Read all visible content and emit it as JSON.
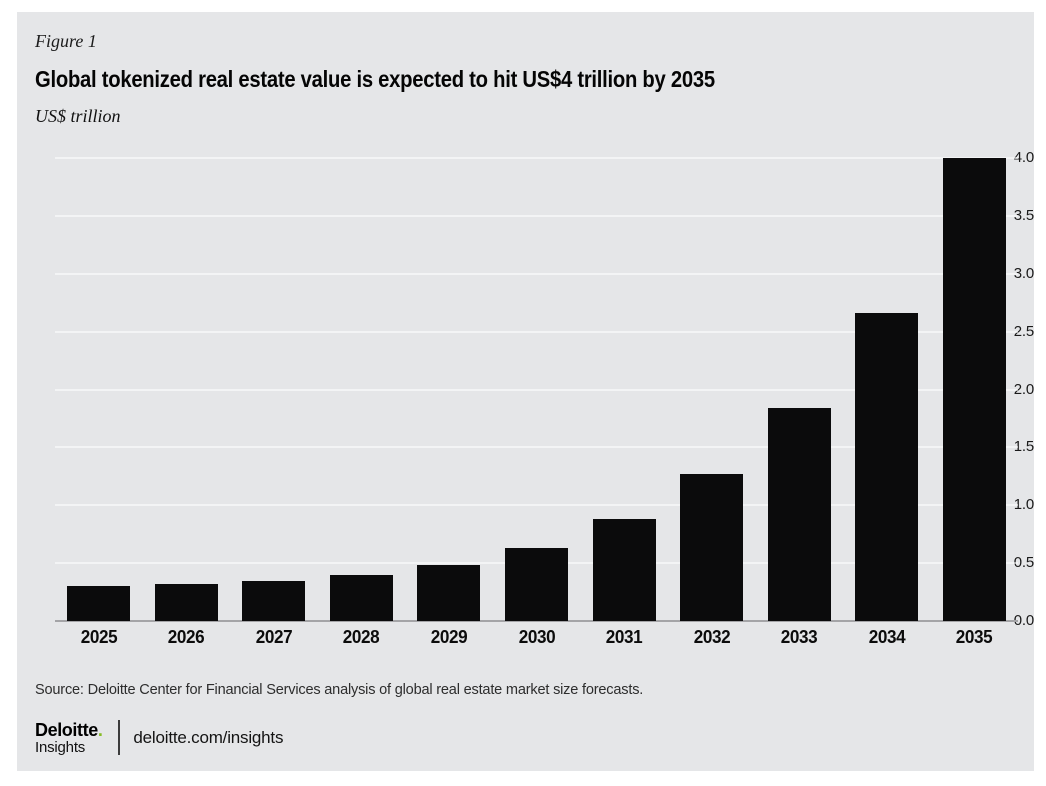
{
  "figure_label": "Figure 1",
  "title": "Global tokenized real estate value is expected to hit US$4 trillion by 2035",
  "unit_label": "US$ trillion",
  "source": "Source: Deloitte Center for Financial Services analysis of global real estate market size forecasts.",
  "footer": {
    "brand": "Deloitte",
    "brand_dot": ".",
    "brand_sub": "Insights",
    "link": "deloitte.com/insights"
  },
  "colors": {
    "panel_bg": "#e5e6e8",
    "bar": "#0b0b0c",
    "gridline": "rgba(255,255,255,0.55)",
    "axis_line": "#a4a4a7",
    "accent_green": "#86bc25",
    "text": "#0c0c0c"
  },
  "chart_data": {
    "type": "bar",
    "title": "Global tokenized real estate value is expected to hit US$4 trillion by 2035",
    "xlabel": "",
    "ylabel": "US$ trillion",
    "categories": [
      "2025",
      "2026",
      "2027",
      "2028",
      "2029",
      "2030",
      "2031",
      "2032",
      "2033",
      "2034",
      "2035"
    ],
    "values": [
      0.3,
      0.32,
      0.35,
      0.4,
      0.48,
      0.63,
      0.88,
      1.27,
      1.84,
      2.66,
      4.0
    ],
    "ylim": [
      0,
      4.0
    ],
    "yticks": [
      0.0,
      0.5,
      1.0,
      1.5,
      2.0,
      2.5,
      3.0,
      3.5,
      4.0
    ],
    "grid": "horizontal",
    "legend": "none",
    "bar_color": "#0b0b0c"
  }
}
